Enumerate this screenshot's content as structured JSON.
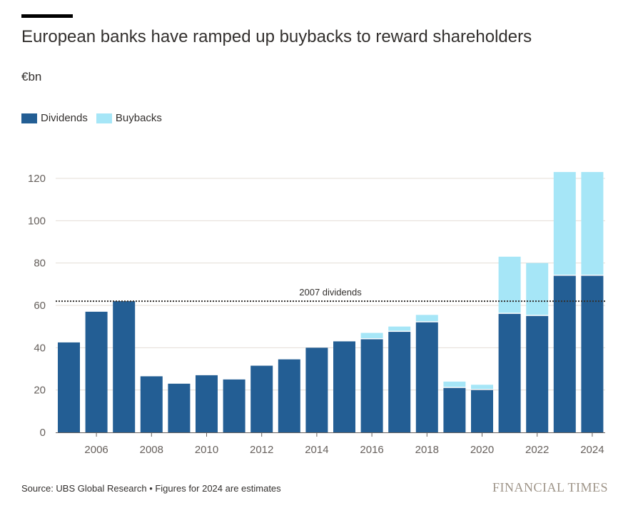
{
  "header": {
    "title": "European banks have ramped up buybacks to reward shareholders",
    "unit": "€bn"
  },
  "legend": {
    "items": [
      {
        "label": "Dividends",
        "color": "#235e94"
      },
      {
        "label": "Buybacks",
        "color": "#a6e6f7"
      }
    ]
  },
  "chart_data": {
    "type": "bar",
    "stacked": true,
    "x": [
      2005,
      2006,
      2007,
      2008,
      2009,
      2010,
      2011,
      2012,
      2013,
      2014,
      2015,
      2016,
      2017,
      2018,
      2019,
      2020,
      2021,
      2022,
      2023,
      2024
    ],
    "x_tick_labels": [
      "2006",
      "2008",
      "2010",
      "2012",
      "2014",
      "2016",
      "2018",
      "2020",
      "2022",
      "2024"
    ],
    "series": [
      {
        "name": "Dividends",
        "color": "#235e94",
        "values": [
          42.5,
          57,
          62,
          26.5,
          23,
          27,
          25,
          31.5,
          34.5,
          40,
          43,
          44,
          47.5,
          52,
          21,
          20,
          56,
          55,
          74,
          74
        ]
      },
      {
        "name": "Buybacks",
        "color": "#a6e6f7",
        "values": [
          0,
          0,
          0,
          0,
          0,
          0,
          0,
          0,
          0,
          0,
          0,
          3,
          2.5,
          3.5,
          3,
          2.5,
          27,
          25,
          49,
          49
        ]
      }
    ],
    "ylim": [
      0,
      120
    ],
    "yticks": [
      0,
      20,
      40,
      60,
      80,
      100,
      120
    ],
    "grid": true,
    "legend_position": "top-left",
    "reference_line": {
      "value": 62,
      "label": "2007 dividends"
    }
  },
  "footer": {
    "source": "Source: UBS Global Research • Figures for 2024 are estimates",
    "brand": "FINANCIAL TIMES"
  }
}
